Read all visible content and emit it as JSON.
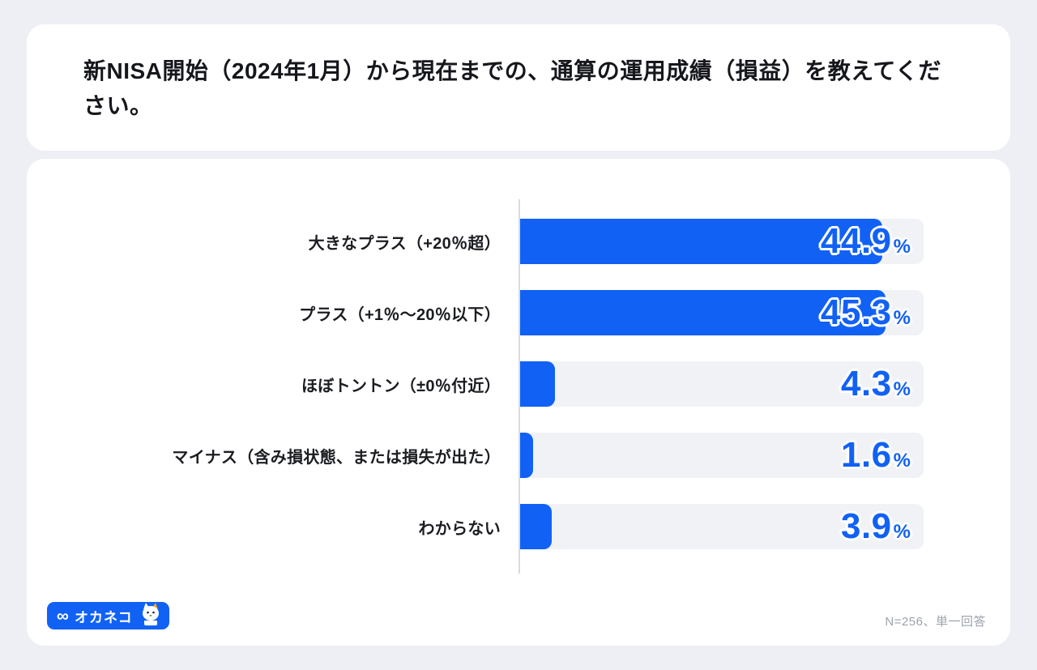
{
  "page": {
    "background_color": "#edeff4",
    "card_color": "#ffffff"
  },
  "header": {
    "title": "新NISA開始（2024年1月）から現在までの、通算の運用成績（損益）を教えてください。"
  },
  "chart_data": {
    "type": "bar",
    "orientation": "horizontal",
    "title": "新NISA開始（2024年1月）から現在までの、通算の運用成績（損益）を教えてください。",
    "categories": [
      "大きなプラス（+20％超）",
      "プラス（+1％〜20％以下）",
      "ほぼトントン（±0％付近）",
      "マイナス（含み損状態、または損失が出た）",
      "わからない"
    ],
    "values": [
      44.9,
      45.3,
      4.3,
      1.6,
      3.9
    ],
    "value_labels": [
      "44.9",
      "45.3",
      "4.3",
      "1.6",
      "3.9"
    ],
    "unit": "%",
    "x_max": 50,
    "bar_color": "#1161f5",
    "track_color": "#f0f2f6",
    "value_color": "#1161f5",
    "grid": false,
    "legend": false
  },
  "footer": {
    "logo": {
      "infinity_icon": "∞",
      "text": "オカネコ"
    },
    "note": "N=256、単一回答"
  }
}
